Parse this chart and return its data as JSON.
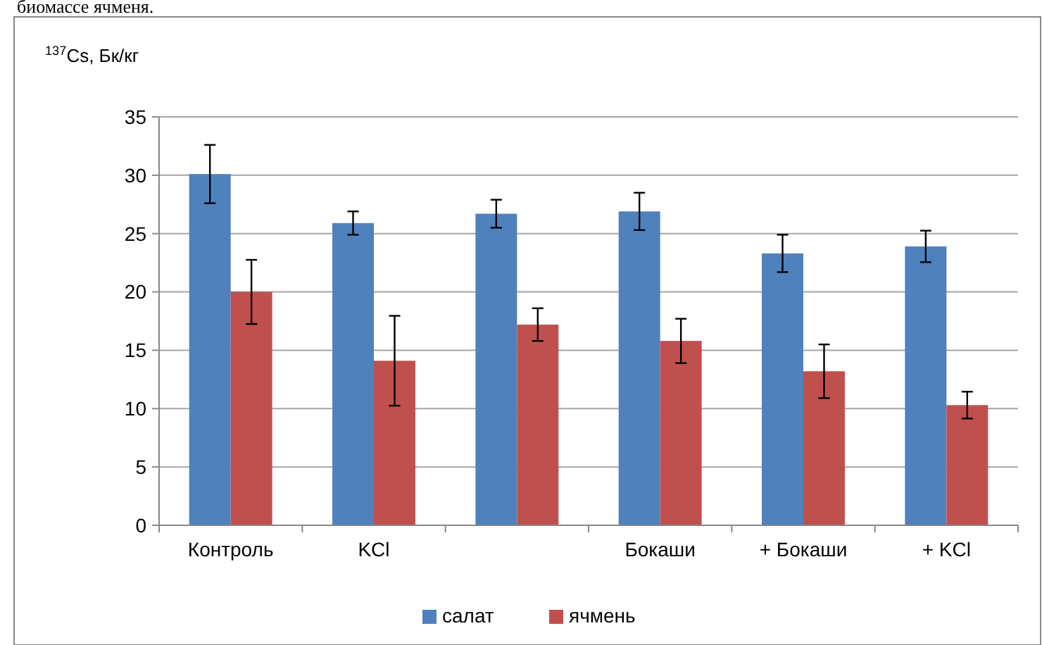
{
  "chart_data": {
    "type": "bar",
    "ylabel": "$^{137}$Cs, Бк/кг",
    "annotations": [
      "биомассе ячменя."
    ],
    "categories": [
      "Контроль",
      "KCl",
      null,
      "Бокаши",
      "+ Бокаши",
      "+ KCl"
    ],
    "series": [
      {
        "name": "салат",
        "color": "#4f81bd",
        "values": [
          30.1,
          25.9,
          26.7,
          26.9,
          23.3,
          23.9
        ],
        "errors": [
          2.5,
          1.0,
          1.2,
          1.6,
          1.6,
          1.35
        ]
      },
      {
        "name": "ячмень",
        "color": "#c0504d",
        "values": [
          20.0,
          14.1,
          17.2,
          15.8,
          13.2,
          10.3
        ],
        "errors": [
          2.75,
          3.85,
          1.4,
          1.9,
          2.3,
          1.15
        ]
      }
    ],
    "ylim": [
      0,
      35
    ],
    "yticks": [
      0,
      5,
      10,
      15,
      20,
      25,
      30,
      35
    ],
    "grid": "y",
    "legend": "bottom"
  }
}
